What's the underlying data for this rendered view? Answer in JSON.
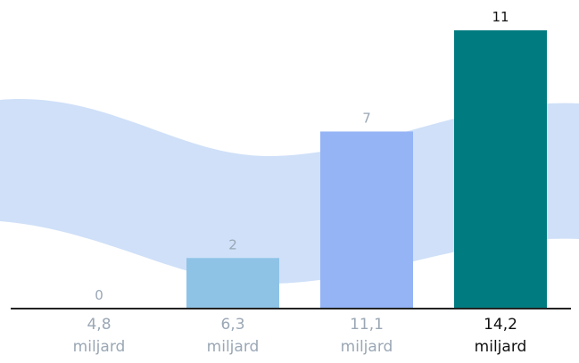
{
  "chart_data": {
    "type": "bar",
    "title": "",
    "xlabel": "",
    "ylabel": "",
    "ylim": [
      0,
      11
    ],
    "grid": false,
    "legend": "none",
    "categories": [
      {
        "value": "4,8",
        "unit": "miljard"
      },
      {
        "value": "6,3",
        "unit": "miljard"
      },
      {
        "value": "11,1",
        "unit": "miljard"
      },
      {
        "value": "14,2",
        "unit": "miljard"
      }
    ],
    "values": [
      0,
      2,
      7,
      11
    ],
    "value_labels": [
      "0",
      "2",
      "7",
      "11"
    ],
    "bar_colors": [
      "#a7c9f3",
      "#8fc3e6",
      "#94b4f6",
      "#007c80"
    ],
    "highlight_index": 3
  },
  "colors": {
    "wave": "#cfe0f8",
    "baseline": "#222222",
    "label_muted": "#9aa7b5",
    "label_highlight": "#111111",
    "value_label": "#9aa7b5",
    "value_label_highlight": "#111111"
  }
}
